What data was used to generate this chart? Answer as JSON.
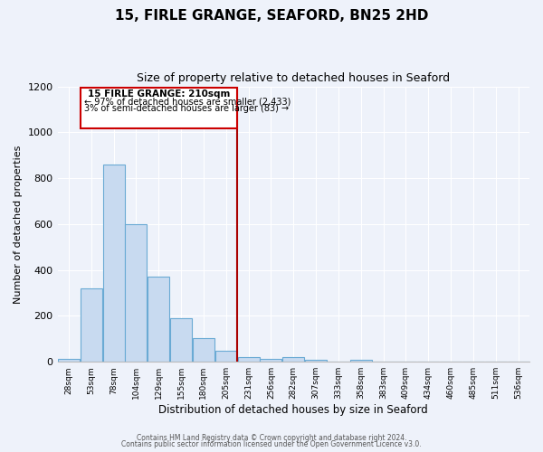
{
  "title": "15, FIRLE GRANGE, SEAFORD, BN25 2HD",
  "subtitle": "Size of property relative to detached houses in Seaford",
  "xlabel": "Distribution of detached houses by size in Seaford",
  "ylabel": "Number of detached properties",
  "bin_labels": [
    "28sqm",
    "53sqm",
    "78sqm",
    "104sqm",
    "129sqm",
    "155sqm",
    "180sqm",
    "205sqm",
    "231sqm",
    "256sqm",
    "282sqm",
    "307sqm",
    "333sqm",
    "358sqm",
    "383sqm",
    "409sqm",
    "434sqm",
    "460sqm",
    "485sqm",
    "511sqm",
    "536sqm"
  ],
  "bar_values": [
    12,
    320,
    860,
    600,
    370,
    190,
    105,
    48,
    20,
    12,
    20,
    8,
    0,
    8,
    0,
    0,
    0,
    0,
    0,
    0,
    0
  ],
  "bar_color": "#c8daf0",
  "bar_edge_color": "#6aaad4",
  "vline_x": 7,
  "vline_color": "#aa0000",
  "annotation_title": "15 FIRLE GRANGE: 210sqm",
  "annotation_line1": "← 97% of detached houses are smaller (2,433)",
  "annotation_line2": "3% of semi-detached houses are larger (83) →",
  "annotation_box_edgecolor": "#cc0000",
  "ylim": [
    0,
    1200
  ],
  "yticks": [
    0,
    200,
    400,
    600,
    800,
    1000,
    1200
  ],
  "footer1": "Contains HM Land Registry data © Crown copyright and database right 2024.",
  "footer2": "Contains public sector information licensed under the Open Government Licence v3.0.",
  "bg_color": "#eef2fa",
  "plot_bg_color": "#eef2fa",
  "grid_color": "#ffffff"
}
